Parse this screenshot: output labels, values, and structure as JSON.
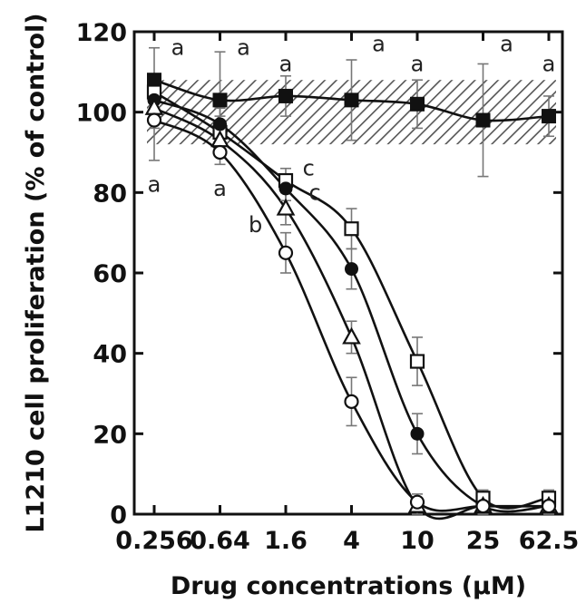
{
  "chart_data": {
    "type": "scatter",
    "xlabel": "Drug concentrations (µM)",
    "ylabel": "L1210 cell proliferation (% of control)",
    "x_scale": "log",
    "x_ticks": [
      0.256,
      0.64,
      1.6,
      4,
      10,
      25,
      62.5
    ],
    "x_tick_labels": [
      "0.256",
      "0.64",
      "1.6",
      "4",
      "10",
      "25",
      "62.5"
    ],
    "ylim": [
      0,
      120
    ],
    "y_ticks": [
      0,
      20,
      40,
      60,
      80,
      100,
      120
    ],
    "y_tick_labels": [
      "0",
      "20",
      "40",
      "60",
      "80",
      "100",
      "120"
    ],
    "control_band": [
      92,
      108
    ],
    "series": [
      {
        "marker": "filled-square",
        "x": [
          0.256,
          0.64,
          1.6,
          4,
          10,
          25,
          62.5
        ],
        "y": [
          108,
          103,
          104,
          103,
          102,
          98,
          99
        ],
        "err": [
          8,
          12,
          5,
          10,
          6,
          14,
          5
        ]
      },
      {
        "marker": "open-square",
        "x": [
          0.256,
          0.64,
          1.6,
          4,
          10,
          25,
          62.5
        ],
        "y": [
          105,
          95,
          83,
          71,
          38,
          4,
          4
        ],
        "err": [
          4,
          4,
          3,
          5,
          6,
          2,
          2
        ]
      },
      {
        "marker": "filled-circle",
        "x": [
          0.256,
          0.64,
          1.6,
          4,
          10,
          25,
          62.5
        ],
        "y": [
          103,
          97,
          81,
          61,
          20,
          2,
          2
        ],
        "err": [
          4,
          4,
          3,
          5,
          5,
          2,
          2
        ]
      },
      {
        "marker": "open-triangle",
        "x": [
          0.256,
          0.64,
          1.6,
          4,
          10,
          25,
          62.5
        ],
        "y": [
          101,
          93,
          76,
          44,
          2,
          2,
          2
        ],
        "err": [
          5,
          4,
          4,
          4,
          2,
          1,
          1
        ]
      },
      {
        "marker": "open-circle",
        "x": [
          0.256,
          0.64,
          1.6,
          4,
          10,
          25,
          62.5
        ],
        "y": [
          98,
          90,
          65,
          28,
          3,
          2,
          2
        ],
        "err": [
          10,
          3,
          5,
          6,
          2,
          1,
          1
        ]
      }
    ],
    "annotations": [
      {
        "text": "a",
        "x": 0.256,
        "y": 116
      },
      {
        "text": "a",
        "x": 0.64,
        "y": 116
      },
      {
        "text": "a",
        "x": 1.6,
        "y": 112
      },
      {
        "text": "a",
        "x": 4,
        "y": 117
      },
      {
        "text": "a",
        "x": 10,
        "y": 112
      },
      {
        "text": "a",
        "x": 25,
        "y": 117
      },
      {
        "text": "a",
        "x": 62.5,
        "y": 112
      },
      {
        "text": "a",
        "x": 0.256,
        "y": 82
      },
      {
        "text": "a",
        "x": 0.64,
        "y": 81
      },
      {
        "text": "c",
        "x": 2.2,
        "y": 86
      },
      {
        "text": "c",
        "x": 2.4,
        "y": 80
      },
      {
        "text": "b",
        "x": 1.05,
        "y": 72
      }
    ]
  }
}
